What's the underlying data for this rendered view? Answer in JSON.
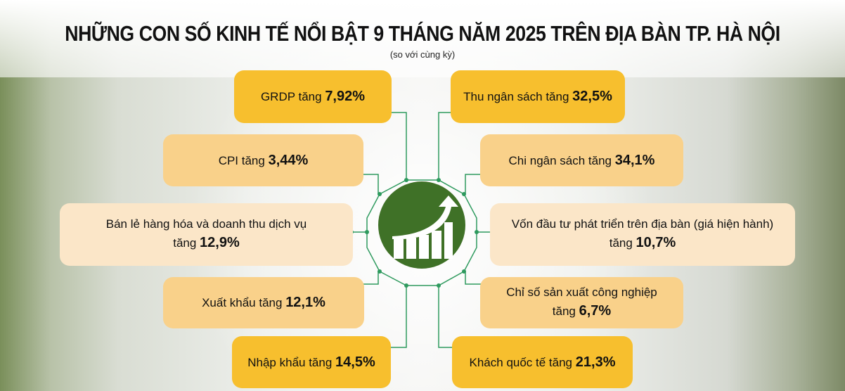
{
  "header": {
    "title": "NHỮNG CON SỐ KINH TẾ NỔI BẬT 9 THÁNG NĂM 2025 TRÊN ĐỊA BÀN TP. HÀ NỘI",
    "subtitle": "(so với cùng kỳ)"
  },
  "center_icon": "growth-chart-arrow-icon",
  "colors": {
    "gold": "#f7bf2e",
    "orange": "#f9d18a",
    "light": "#fbe6c8",
    "green": "#3f7127",
    "line": "#2e9a5e"
  },
  "left": [
    {
      "label": "GRDP tăng",
      "value": "7,92%"
    },
    {
      "label": "CPI tăng",
      "value": "3,44%"
    },
    {
      "label": "Bán lẻ hàng hóa và doanh thu dịch vụ",
      "label2": "tăng",
      "value": "12,9%"
    },
    {
      "label": "Xuất khẩu tăng",
      "value": "12,1%"
    },
    {
      "label": "Nhập khẩu tăng",
      "value": "14,5%"
    }
  ],
  "right": [
    {
      "label": "Thu ngân sách tăng",
      "value": "32,5%"
    },
    {
      "label": "Chi ngân sách tăng",
      "value": "34,1%"
    },
    {
      "label": "Vốn đầu tư phát triển trên địa bàn (giá hiện hành)",
      "label2": "tăng",
      "value": "10,7%"
    },
    {
      "label": "Chỉ số sản xuất công nghiệp",
      "label2": "tăng",
      "value": "6,7%"
    },
    {
      "label": "Khách quốc tế tăng",
      "value": "21,3%"
    }
  ]
}
